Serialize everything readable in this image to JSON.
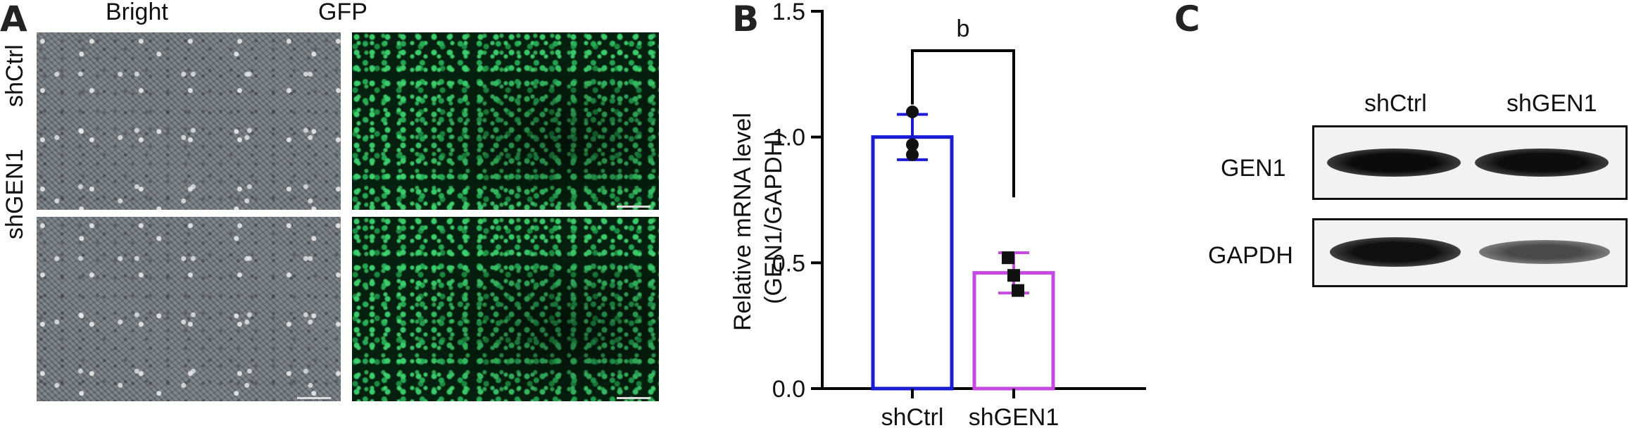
{
  "panel_a": {
    "letter": "A",
    "col_labels": [
      "Bright",
      "GFP"
    ],
    "row_labels": [
      "shCtrl",
      "shGEN1"
    ]
  },
  "panel_b": {
    "letter": "B"
  },
  "panel_c": {
    "letter": "C",
    "lane_labels": [
      "shCtrl",
      "shGEN1"
    ],
    "blot_labels": [
      "GEN1",
      "GAPDH"
    ]
  },
  "chart_data": {
    "type": "bar",
    "categories": [
      "shCtrl",
      "shGEN1"
    ],
    "values": [
      1.0,
      0.46
    ],
    "errors": [
      0.09,
      0.08
    ],
    "points": [
      [
        1.1,
        0.97,
        0.93
      ],
      [
        0.52,
        0.45,
        0.39
      ]
    ],
    "colors": [
      "#1b1bd6",
      "#c64adf"
    ],
    "ylabel_lines": [
      "Relative mRNA level",
      "(GEN1/GAPDH)"
    ],
    "xlabel": "",
    "ylim": [
      0,
      1.5
    ],
    "yticks": [
      "0.0",
      "0.5",
      "1.0",
      "1.5"
    ],
    "significance": "b"
  }
}
